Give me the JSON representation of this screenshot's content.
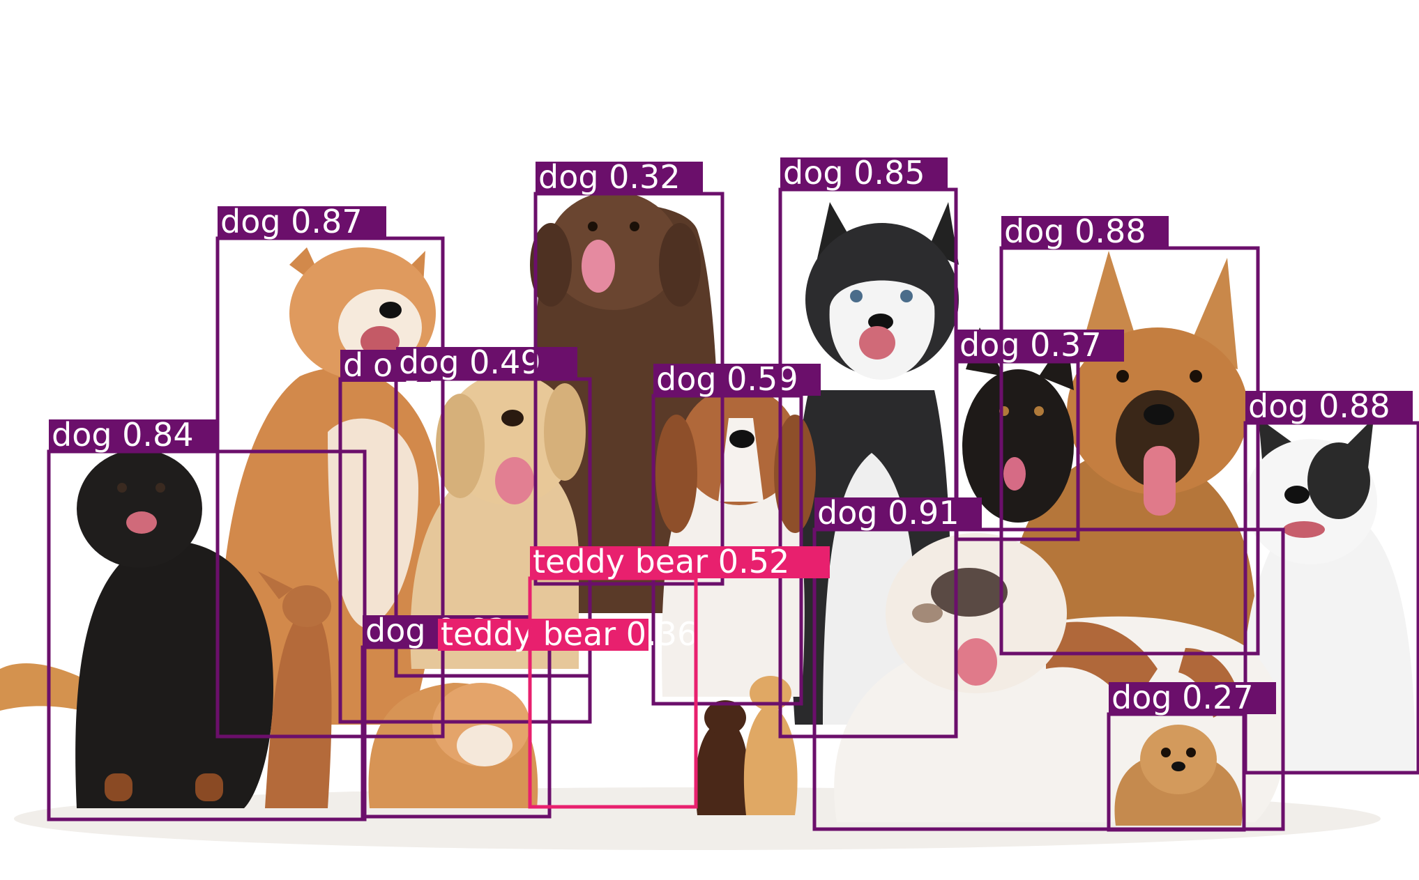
{
  "colors": {
    "background": "#ffffff",
    "dog": "#6b0f6b",
    "teddy_bear": "#e8206e",
    "label_text": "#ffffff"
  },
  "detections": [
    {
      "label": "dog 0.84",
      "cls": "dog"
    },
    {
      "label": "dog 0.87",
      "cls": "dog"
    },
    {
      "label": "dog 0.77",
      "cls": "dog"
    },
    {
      "label": "dog 0.49",
      "cls": "dog"
    },
    {
      "label": "dog 0.32",
      "cls": "dog"
    },
    {
      "label": "dog 0.59",
      "cls": "dog"
    },
    {
      "label": "dog 0.85",
      "cls": "dog"
    },
    {
      "label": "dog 0.37",
      "cls": "dog"
    },
    {
      "label": "dog 0.88",
      "cls": "dog"
    },
    {
      "label": "dog 0.88",
      "cls": "dog"
    },
    {
      "label": "dog 0.91",
      "cls": "dog"
    },
    {
      "label": "dog 0.63",
      "cls": "dog"
    },
    {
      "label": "teddy bear 0.36",
      "cls": "teddy_bear"
    },
    {
      "label": "teddy bear 0.52",
      "cls": "teddy_bear"
    },
    {
      "label": "dog 0.27",
      "cls": "dog"
    }
  ]
}
